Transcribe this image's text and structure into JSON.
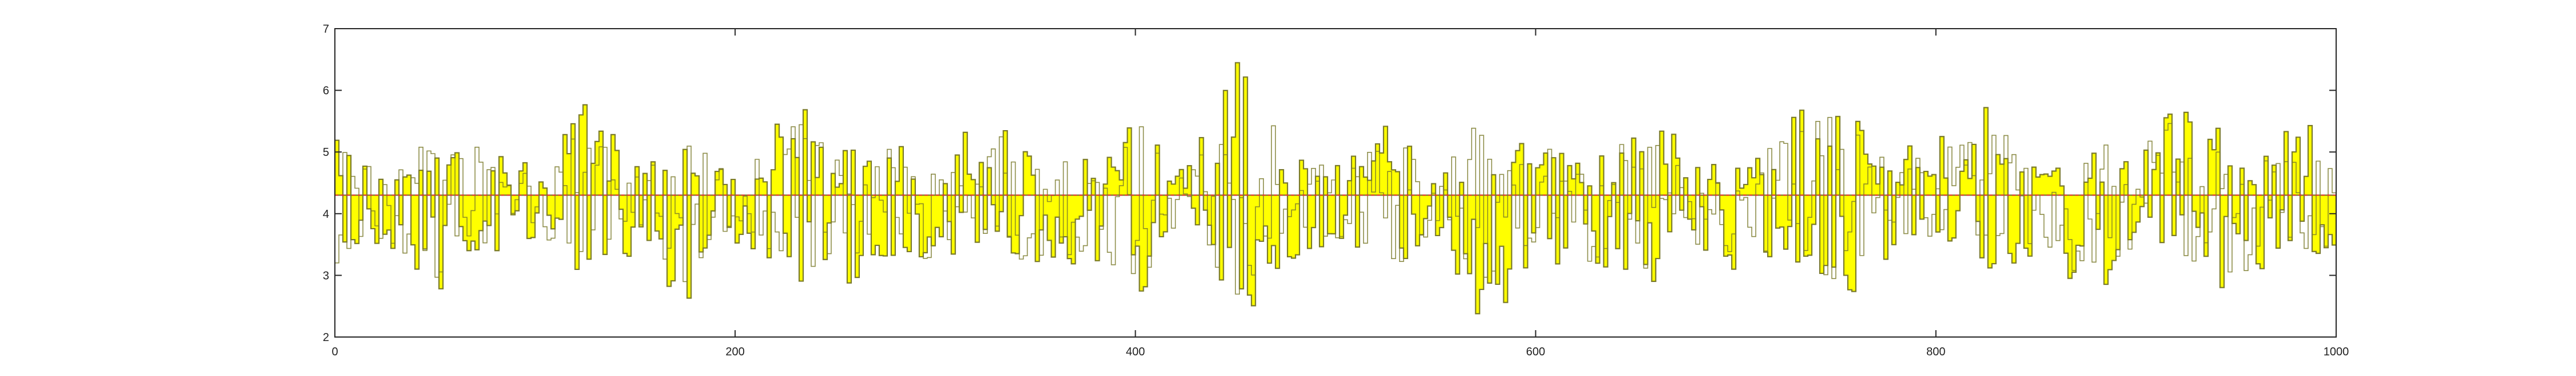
{
  "chart_data": {
    "type": "area",
    "title": "",
    "xlabel": "",
    "ylabel": "",
    "xlim": [
      0,
      1000
    ],
    "ylim": [
      2,
      7
    ],
    "x_ticks": [
      0,
      200,
      400,
      600,
      800,
      1000
    ],
    "y_ticks": [
      2,
      3,
      4,
      5,
      6,
      7
    ],
    "grid": false,
    "legend": "none",
    "series": [
      {
        "role": "upper",
        "values": [
          5.1,
          4.6,
          5.4,
          5.0,
          4.7,
          5.6,
          4.8,
          5.3,
          4.5,
          5.9,
          4.9,
          5.2,
          4.6,
          5.7,
          5.0,
          4.8,
          5.5,
          4.7,
          6.3,
          5.1,
          4.9,
          5.4,
          4.6,
          5.8,
          5.2,
          4.7,
          5.5,
          5.0,
          4.8,
          5.3,
          6.0,
          4.9,
          5.1,
          5.6,
          4.7,
          5.2,
          5.0,
          5.9,
          4.8,
          5.3
        ],
        "x_step": 25
      },
      {
        "role": "lower",
        "values": [
          3.2,
          3.6,
          2.9,
          3.4,
          3.7,
          3.1,
          3.5,
          2.8,
          3.6,
          3.3,
          2.6,
          3.5,
          3.2,
          3.7,
          3.0,
          3.4,
          2.9,
          3.6,
          2.5,
          3.3,
          3.5,
          3.0,
          3.7,
          2.4,
          3.4,
          3.2,
          2.9,
          3.6,
          3.1,
          3.5,
          2.7,
          3.3,
          3.6,
          3.0,
          3.4,
          2.8,
          3.5,
          3.2,
          2.9,
          3.4
        ],
        "x_step": 25
      },
      {
        "role": "mean",
        "values": [
          4.3,
          4.3
        ]
      }
    ],
    "colors": {
      "fill": "#ffff00",
      "edge": "#7a7a2a",
      "mean_line": "#e03030",
      "axes": "#262626",
      "background": "#ffffff"
    }
  }
}
